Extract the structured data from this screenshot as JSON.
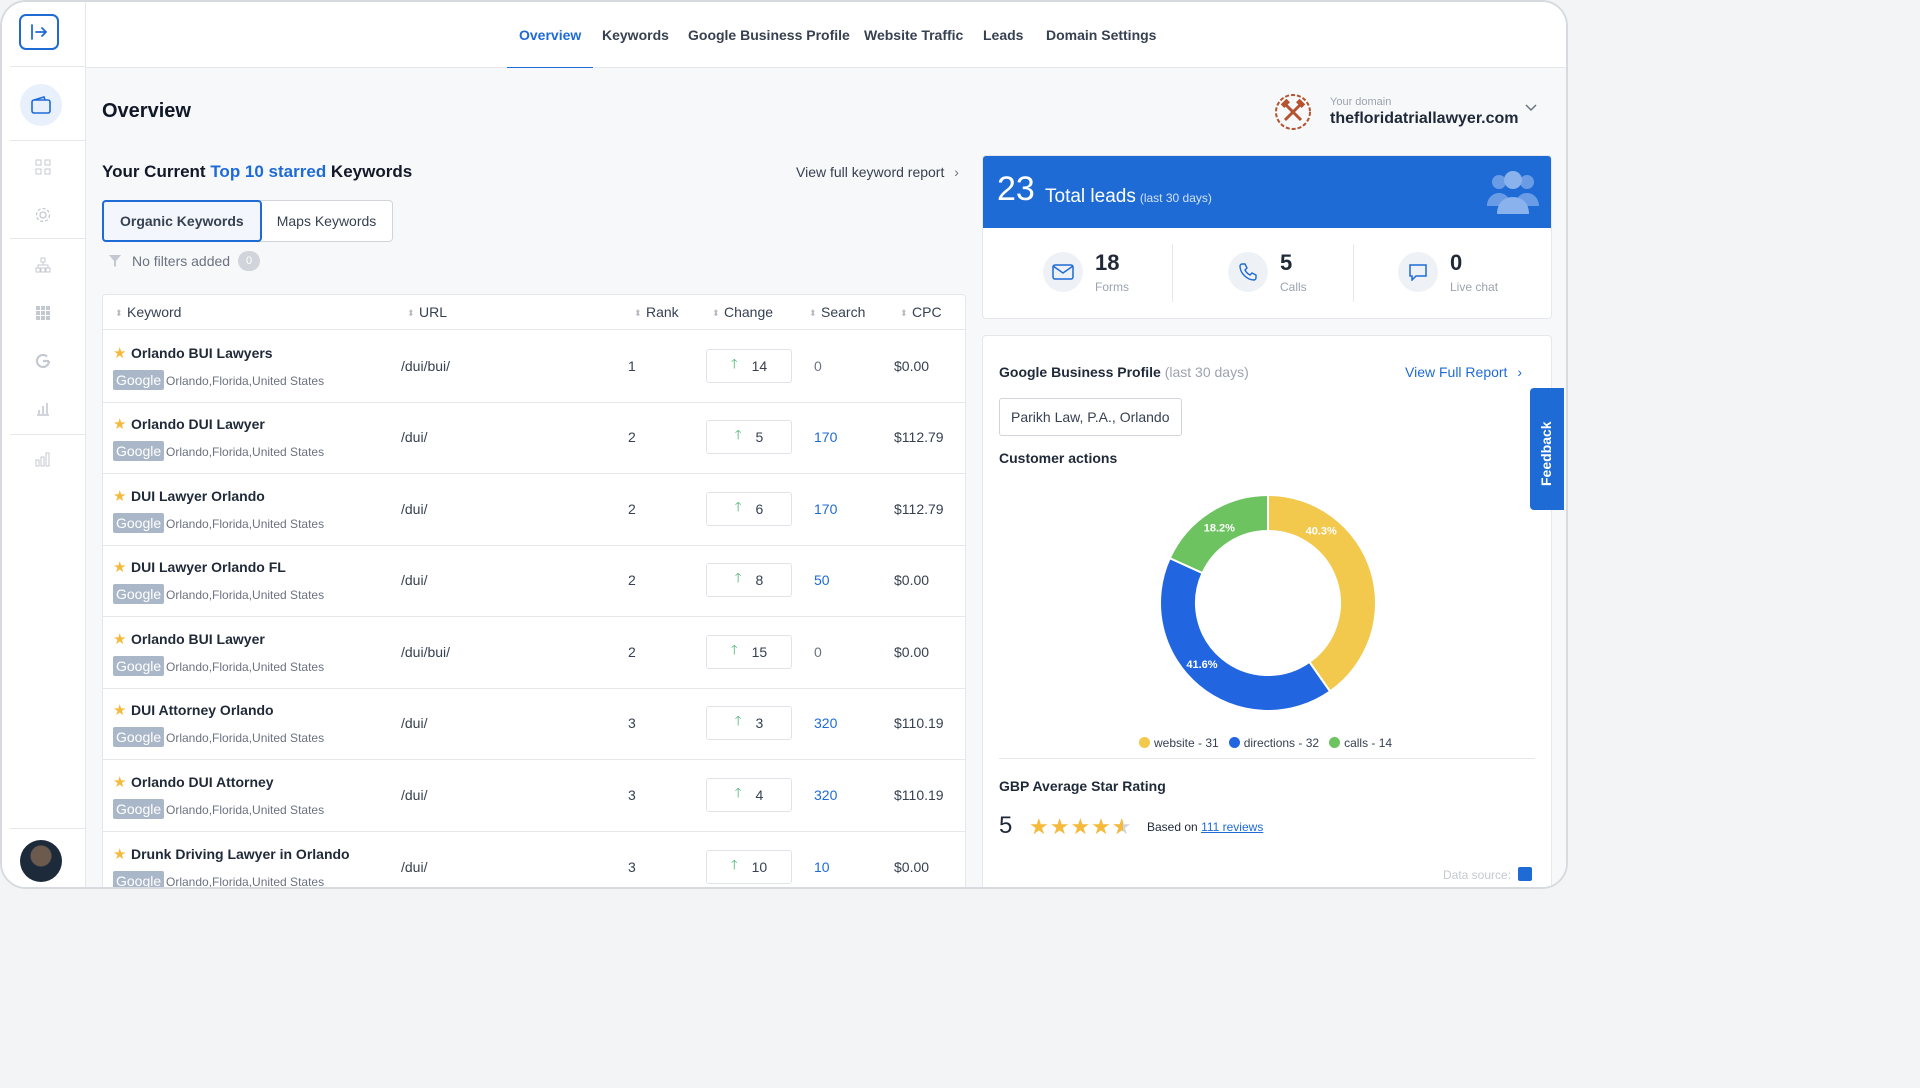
{
  "nav": {
    "tabs": [
      {
        "label": "Overview"
      },
      {
        "label": "Keywords"
      },
      {
        "label": "Google Business Profile"
      },
      {
        "label": "Website Traffic"
      },
      {
        "label": "Leads"
      },
      {
        "label": "Domain Settings"
      }
    ]
  },
  "page": {
    "title": "Overview"
  },
  "domain": {
    "label": "Your domain",
    "value": "thefloridatriallawyer.com"
  },
  "keywords": {
    "heading_pre": "Your Current ",
    "heading_hl": "Top 10 starred",
    "heading_post": " Keywords",
    "view_full": "View full keyword report",
    "segments": [
      "Organic Keywords",
      "Maps Keywords"
    ],
    "filters_label": "No filters added",
    "filters_count": "0",
    "columns": [
      "Keyword",
      "URL",
      "Rank",
      "Change",
      "Search",
      "CPC"
    ],
    "engine_badge": "Google",
    "rows": [
      {
        "keyword": "Orlando BUI Lawyers",
        "location": "Orlando,Florida,United States",
        "url": "/dui/bui/",
        "rank": "1",
        "change": "14",
        "search": "0",
        "cpc": "$0.00"
      },
      {
        "keyword": "Orlando DUI Lawyer",
        "location": "Orlando,Florida,United States",
        "url": "/dui/",
        "rank": "2",
        "change": "5",
        "search": "170",
        "cpc": "$112.79"
      },
      {
        "keyword": "DUI Lawyer Orlando",
        "location": "Orlando,Florida,United States",
        "url": "/dui/",
        "rank": "2",
        "change": "6",
        "search": "170",
        "cpc": "$112.79"
      },
      {
        "keyword": "DUI Lawyer Orlando FL",
        "location": "Orlando,Florida,United States",
        "url": "/dui/",
        "rank": "2",
        "change": "8",
        "search": "50",
        "cpc": "$0.00"
      },
      {
        "keyword": "Orlando BUI Lawyer",
        "location": "Orlando,Florida,United States",
        "url": "/dui/bui/",
        "rank": "2",
        "change": "15",
        "search": "0",
        "cpc": "$0.00"
      },
      {
        "keyword": "DUI Attorney Orlando",
        "location": "Orlando,Florida,United States",
        "url": "/dui/",
        "rank": "3",
        "change": "3",
        "search": "320",
        "cpc": "$110.19"
      },
      {
        "keyword": "Orlando DUI Attorney",
        "location": "Orlando,Florida,United States",
        "url": "/dui/",
        "rank": "3",
        "change": "4",
        "search": "320",
        "cpc": "$110.19"
      },
      {
        "keyword": "Drunk Driving Lawyer in Orlando",
        "location": "Orlando,Florida,United States",
        "url": "/dui/",
        "rank": "3",
        "change": "10",
        "search": "10",
        "cpc": "$0.00"
      }
    ]
  },
  "leads": {
    "total": "23",
    "label": "Total leads",
    "period": "(last 30 days)",
    "stats": [
      {
        "value": "18",
        "label": "Forms",
        "icon": "mail-icon"
      },
      {
        "value": "5",
        "label": "Calls",
        "icon": "phone-icon"
      },
      {
        "value": "0",
        "label": "Live chat",
        "icon": "chat-icon"
      }
    ]
  },
  "gbp": {
    "title": "Google Business Profile",
    "period": "(last 30 days)",
    "link": "View Full Report",
    "location": "Parikh Law, P.A., Orlando",
    "actions_title": "Customer actions",
    "rating_title": "GBP Average Star Rating",
    "rating": "5",
    "rating_stars": 4.5,
    "based_on": "Based on",
    "reviews": "111 reviews",
    "data_source": "Data source:"
  },
  "chart_data": {
    "type": "pie",
    "categories": [
      "website",
      "directions",
      "calls"
    ],
    "values": [
      31,
      32,
      14
    ],
    "percent_labels": [
      "40.3%",
      "41.6%",
      "18.2%"
    ],
    "legend": [
      "website - 31",
      "directions - 32",
      "calls - 14"
    ],
    "colors": [
      "#f2c94c",
      "#2166e0",
      "#6cc360"
    ]
  },
  "feedback": {
    "label": "Feedback"
  },
  "colors": {
    "accent": "#1e6bd6",
    "up": "#49b36e",
    "star": "#f5b93b"
  }
}
